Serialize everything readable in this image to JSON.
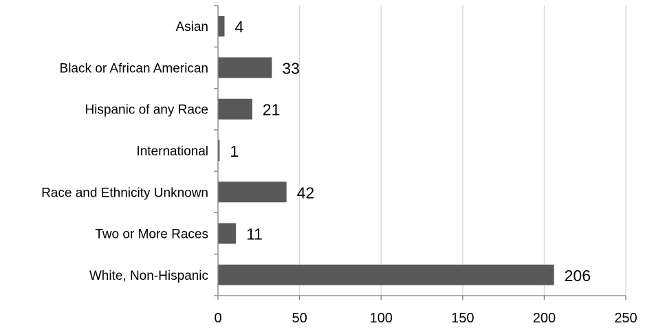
{
  "chart_data": {
    "type": "bar",
    "orientation": "horizontal",
    "categories": [
      "Asian",
      "Black or African American",
      "Hispanic of any Race",
      "International",
      "Race and Ethnicity Unknown",
      "Two or More Races",
      "White, Non-Hispanic"
    ],
    "values": [
      4,
      33,
      21,
      1,
      42,
      11,
      206
    ],
    "data_labels": [
      "4",
      "33",
      "21",
      "1",
      "42",
      "11",
      "206"
    ],
    "x_ticks": [
      "0",
      "50",
      "100",
      "150",
      "200",
      "250"
    ],
    "xlim": [
      0,
      250
    ],
    "grid": "vertical",
    "legend": "none",
    "title": "",
    "xlabel": "",
    "ylabel": "",
    "colors": {
      "bar": "#595959",
      "grid": "#d9d9d9",
      "axis": "#7f7f7f",
      "text": "#000000"
    }
  }
}
